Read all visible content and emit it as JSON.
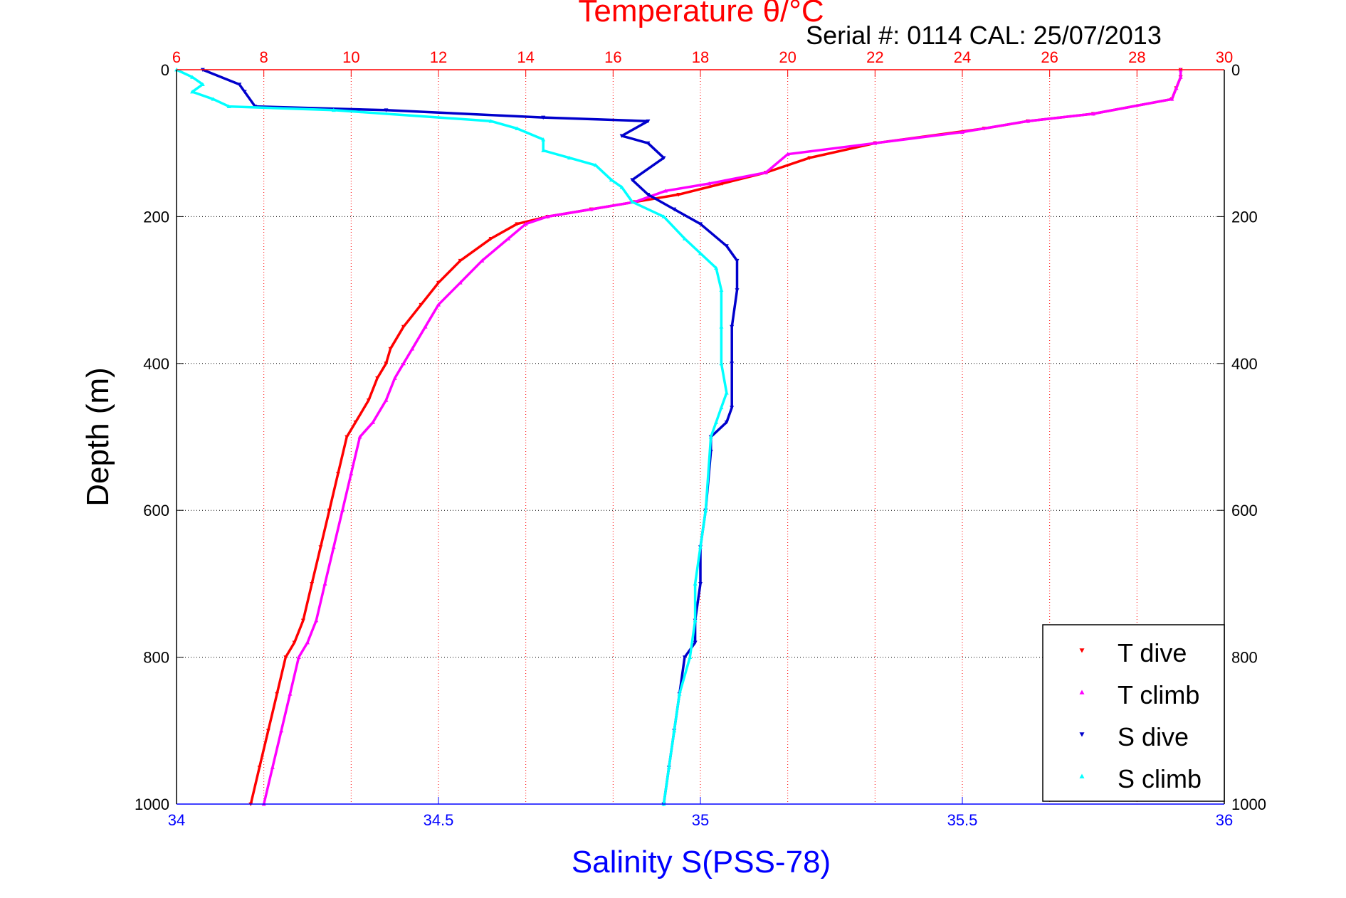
{
  "chart_data": {
    "type": "scatter",
    "title": "Temperature θ/°C",
    "subtitle": "Serial #: 0114  CAL: 25/07/2013",
    "ylabel": "Depth (m)",
    "xlabel_bottom": "Salinity S(PSS-78)",
    "xlabel_top": "Temperature θ/°C",
    "ylim": [
      0,
      1000
    ],
    "y_reversed": true,
    "x_bottom_lim": [
      34,
      36
    ],
    "x_top_lim": [
      6,
      30
    ],
    "y_ticks": [
      "0",
      "200",
      "400",
      "600",
      "800",
      "1000"
    ],
    "x_bottom_ticks": [
      "34",
      "34.5",
      "35",
      "35.5",
      "36"
    ],
    "x_top_ticks": [
      "6",
      "8",
      "10",
      "12",
      "14",
      "16",
      "18",
      "20",
      "22",
      "24",
      "26",
      "28",
      "30"
    ],
    "grid": true,
    "legend_position": "bottom-right",
    "colors": {
      "temperature_axis": "#ff0000",
      "salinity_axis": "#0000ff",
      "t_dive": "#ff0000",
      "t_climb": "#ff00ff",
      "s_dive": "#0000cc",
      "s_climb": "#00ffff"
    },
    "series": [
      {
        "name": "T dive",
        "axis": "temperature",
        "color": "#ff0000",
        "marker": "triangle-down",
        "points": [
          [
            29.0,
            0
          ],
          [
            29.0,
            10
          ],
          [
            28.9,
            25
          ],
          [
            28.8,
            40
          ],
          [
            27.0,
            60
          ],
          [
            25.5,
            70
          ],
          [
            24.5,
            80
          ],
          [
            22.0,
            100
          ],
          [
            20.5,
            120
          ],
          [
            19.5,
            140
          ],
          [
            18.5,
            155
          ],
          [
            17.5,
            170
          ],
          [
            16.5,
            180
          ],
          [
            15.5,
            190
          ],
          [
            14.5,
            200
          ],
          [
            13.8,
            210
          ],
          [
            13.2,
            230
          ],
          [
            12.5,
            260
          ],
          [
            12.0,
            290
          ],
          [
            11.6,
            320
          ],
          [
            11.2,
            350
          ],
          [
            10.9,
            380
          ],
          [
            10.8,
            400
          ],
          [
            10.6,
            420
          ],
          [
            10.4,
            450
          ],
          [
            10.1,
            480
          ],
          [
            9.9,
            500
          ],
          [
            9.7,
            550
          ],
          [
            9.5,
            600
          ],
          [
            9.3,
            650
          ],
          [
            9.1,
            700
          ],
          [
            8.9,
            750
          ],
          [
            8.7,
            780
          ],
          [
            8.5,
            800
          ],
          [
            8.3,
            850
          ],
          [
            8.1,
            900
          ],
          [
            7.9,
            950
          ],
          [
            7.7,
            1000
          ]
        ]
      },
      {
        "name": "T climb",
        "axis": "temperature",
        "color": "#ff00ff",
        "marker": "triangle-up",
        "points": [
          [
            29.0,
            0
          ],
          [
            29.0,
            10
          ],
          [
            28.9,
            25
          ],
          [
            28.8,
            40
          ],
          [
            27.0,
            60
          ],
          [
            25.5,
            70
          ],
          [
            24.0,
            85
          ],
          [
            22.0,
            100
          ],
          [
            20.0,
            115
          ],
          [
            19.5,
            140
          ],
          [
            18.2,
            155
          ],
          [
            17.2,
            165
          ],
          [
            16.5,
            180
          ],
          [
            15.5,
            190
          ],
          [
            14.5,
            200
          ],
          [
            14.0,
            210
          ],
          [
            13.6,
            230
          ],
          [
            13.0,
            260
          ],
          [
            12.5,
            290
          ],
          [
            12.0,
            320
          ],
          [
            11.7,
            350
          ],
          [
            11.4,
            380
          ],
          [
            11.2,
            400
          ],
          [
            11.0,
            420
          ],
          [
            10.8,
            450
          ],
          [
            10.5,
            480
          ],
          [
            10.2,
            500
          ],
          [
            10.0,
            550
          ],
          [
            9.8,
            600
          ],
          [
            9.6,
            650
          ],
          [
            9.4,
            700
          ],
          [
            9.2,
            750
          ],
          [
            9.0,
            780
          ],
          [
            8.8,
            800
          ],
          [
            8.6,
            850
          ],
          [
            8.4,
            900
          ],
          [
            8.2,
            950
          ],
          [
            8.0,
            1000
          ]
        ]
      },
      {
        "name": "S dive",
        "axis": "salinity",
        "color": "#0000cc",
        "marker": "triangle-down",
        "points": [
          [
            34.05,
            0
          ],
          [
            34.12,
            20
          ],
          [
            34.13,
            30
          ],
          [
            34.15,
            50
          ],
          [
            34.4,
            55
          ],
          [
            34.7,
            65
          ],
          [
            34.9,
            70
          ],
          [
            34.85,
            90
          ],
          [
            34.9,
            100
          ],
          [
            34.93,
            120
          ],
          [
            34.87,
            150
          ],
          [
            34.9,
            170
          ],
          [
            34.95,
            190
          ],
          [
            35.0,
            210
          ],
          [
            35.05,
            240
          ],
          [
            35.07,
            260
          ],
          [
            35.07,
            300
          ],
          [
            35.06,
            350
          ],
          [
            35.06,
            400
          ],
          [
            35.06,
            460
          ],
          [
            35.05,
            480
          ],
          [
            35.02,
            500
          ],
          [
            35.02,
            520
          ],
          [
            35.01,
            600
          ],
          [
            35.0,
            650
          ],
          [
            35.0,
            700
          ],
          [
            34.99,
            750
          ],
          [
            34.99,
            780
          ],
          [
            34.97,
            800
          ],
          [
            34.96,
            850
          ],
          [
            34.95,
            900
          ],
          [
            34.94,
            950
          ],
          [
            34.93,
            1000
          ]
        ]
      },
      {
        "name": "S climb",
        "axis": "salinity",
        "color": "#00ffff",
        "marker": "triangle-up",
        "points": [
          [
            34.0,
            0
          ],
          [
            34.03,
            10
          ],
          [
            34.05,
            20
          ],
          [
            34.03,
            30
          ],
          [
            34.07,
            40
          ],
          [
            34.1,
            50
          ],
          [
            34.3,
            55
          ],
          [
            34.6,
            70
          ],
          [
            34.65,
            80
          ],
          [
            34.7,
            95
          ],
          [
            34.7,
            110
          ],
          [
            34.75,
            120
          ],
          [
            34.8,
            130
          ],
          [
            34.83,
            150
          ],
          [
            34.85,
            160
          ],
          [
            34.87,
            180
          ],
          [
            34.93,
            200
          ],
          [
            34.97,
            230
          ],
          [
            35.0,
            250
          ],
          [
            35.03,
            270
          ],
          [
            35.04,
            300
          ],
          [
            35.04,
            350
          ],
          [
            35.04,
            400
          ],
          [
            35.05,
            440
          ],
          [
            35.04,
            460
          ],
          [
            35.03,
            480
          ],
          [
            35.02,
            500
          ],
          [
            35.01,
            600
          ],
          [
            35.0,
            650
          ],
          [
            34.99,
            700
          ],
          [
            34.99,
            750
          ],
          [
            34.98,
            800
          ],
          [
            34.96,
            850
          ],
          [
            34.95,
            900
          ],
          [
            34.94,
            950
          ],
          [
            34.93,
            1000
          ]
        ]
      }
    ]
  }
}
